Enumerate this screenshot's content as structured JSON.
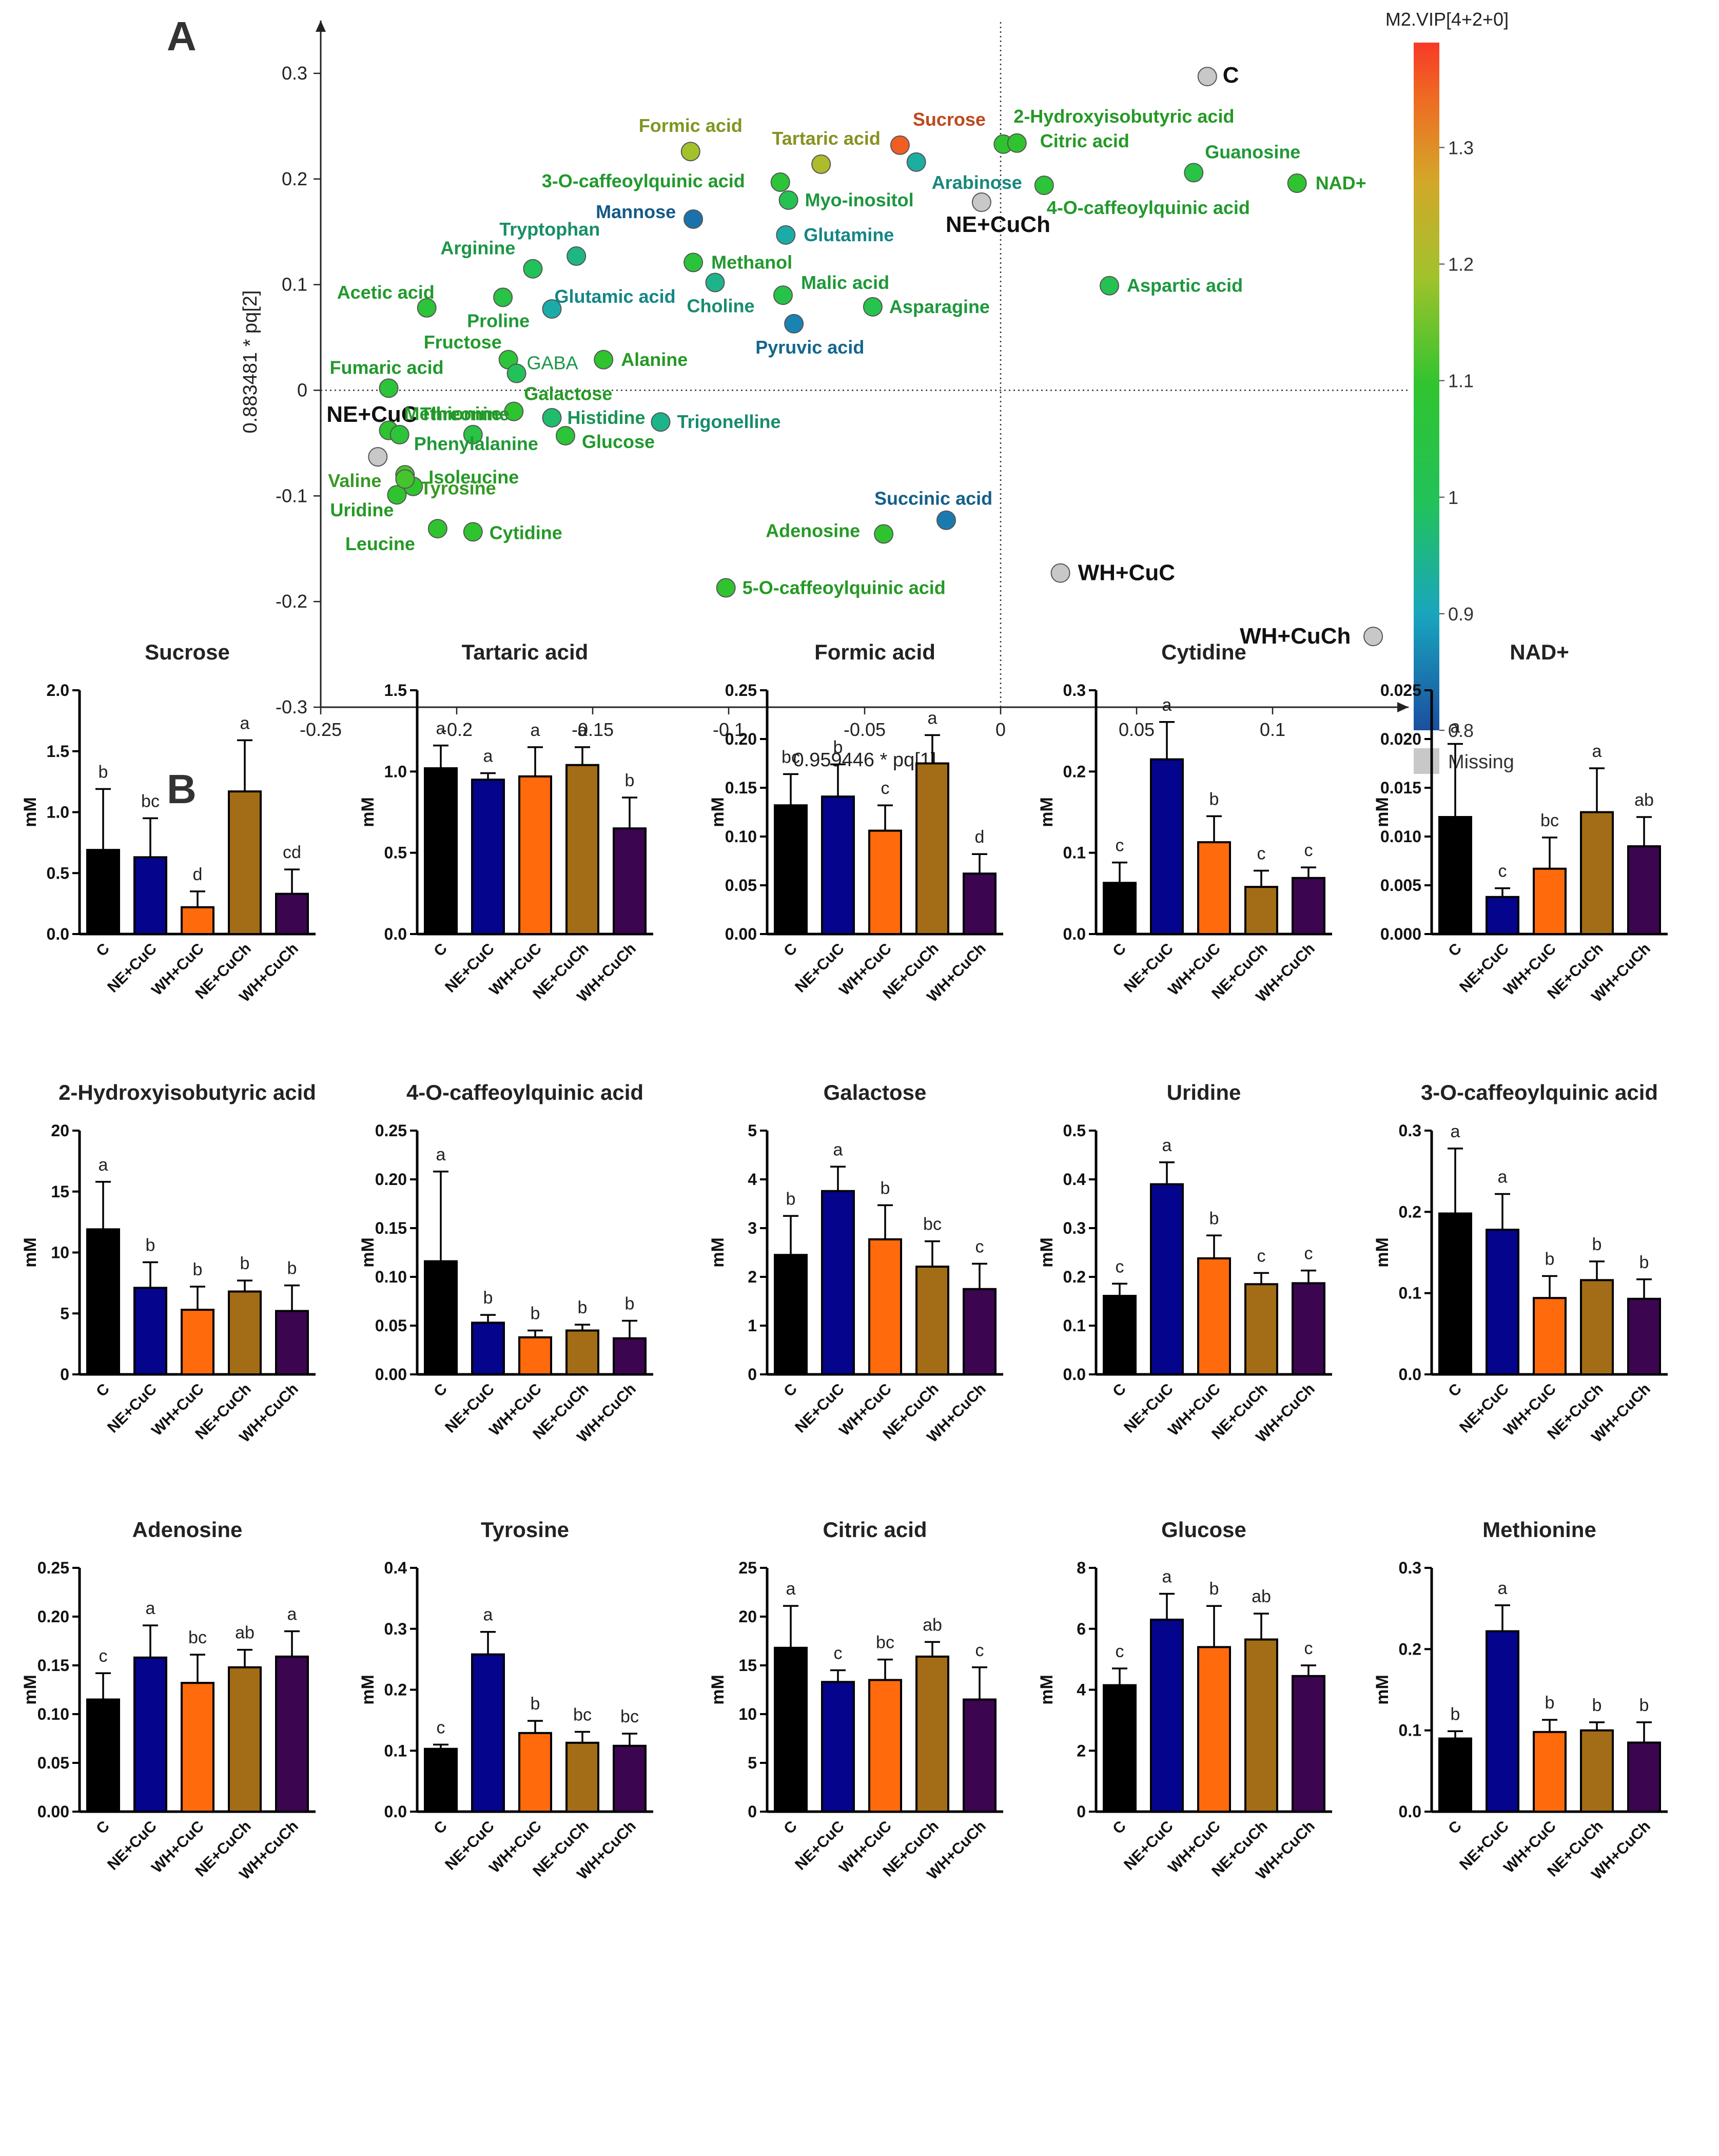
{
  "panel_labels": [
    "A",
    "B"
  ],
  "colorbar": {
    "title": "M2.VIP[4+2+0]",
    "ticks": [
      0.8,
      0.9,
      1,
      1.1,
      1.2,
      1.3
    ],
    "range": [
      0.8,
      1.39
    ],
    "missing_label": "Missing",
    "missing_color": "#c8c8c8",
    "scale_colors": [
      "#1a4fa0",
      "#19a6be",
      "#22c25a",
      "#2fc42f",
      "#a2c22b",
      "#d3a728",
      "#ef6a23",
      "#f73a27"
    ]
  },
  "chart_data": [
    {
      "type": "scatter",
      "title": "",
      "xlabel": "0.959446 * pq[1]",
      "ylabel": "0.883481 * pq[2]",
      "xlim": [
        -0.25,
        0.15
      ],
      "ylim": [
        -0.3,
        0.35
      ],
      "xticks": [
        -0.25,
        -0.2,
        -0.15,
        -0.1,
        -0.05,
        0,
        0.05,
        0.1
      ],
      "yticks": [
        -0.3,
        -0.2,
        -0.1,
        0,
        0.1,
        0.2,
        0.3
      ],
      "points": [
        {
          "label": "C",
          "x": 0.076,
          "y": 0.297,
          "vip": null,
          "group": true
        },
        {
          "label": "NE+CuCh",
          "x": -0.007,
          "y": 0.178,
          "vip": null,
          "group": true
        },
        {
          "label": "NE+CuC",
          "x": -0.229,
          "y": -0.063,
          "vip": null,
          "group": true
        },
        {
          "label": "WH+CuC",
          "x": 0.022,
          "y": -0.173,
          "vip": null,
          "group": true
        },
        {
          "label": "WH+CuCh",
          "x": 0.137,
          "y": -0.233,
          "vip": null,
          "group": true
        },
        {
          "label": "Formic acid",
          "x": -0.114,
          "y": 0.226,
          "vip": 1.2
        },
        {
          "label": "Tartaric acid",
          "x": -0.066,
          "y": 0.214,
          "vip": 1.22
        },
        {
          "label": "Sucrose",
          "x": -0.037,
          "y": 0.232,
          "vip": 1.36
        },
        {
          "label": "2-Hydroxyisobutyric acid",
          "x": 0.001,
          "y": 0.233,
          "vip": 1.1
        },
        {
          "label": "Citric acid",
          "x": 0.006,
          "y": 0.234,
          "vip": 1.1
        },
        {
          "label": "Guanosine",
          "x": 0.071,
          "y": 0.206,
          "vip": 1.05
        },
        {
          "label": "NAD+",
          "x": 0.109,
          "y": 0.196,
          "vip": 1.1
        },
        {
          "label": "4-O-caffeoylquinic acid",
          "x": 0.016,
          "y": 0.194,
          "vip": 1.08
        },
        {
          "label": "3-O-caffeoylquinic acid",
          "x": -0.081,
          "y": 0.197,
          "vip": 1.08
        },
        {
          "label": "Arabinose",
          "x": -0.031,
          "y": 0.216,
          "vip": 0.93
        },
        {
          "label": "Myo-inositol",
          "x": -0.078,
          "y": 0.18,
          "vip": 1.02
        },
        {
          "label": "Mannose",
          "x": -0.113,
          "y": 0.162,
          "vip": 0.84
        },
        {
          "label": "Glutamine",
          "x": -0.079,
          "y": 0.147,
          "vip": 0.92
        },
        {
          "label": "Tryptophan",
          "x": -0.156,
          "y": 0.127,
          "vip": 0.96
        },
        {
          "label": "Arginine",
          "x": -0.172,
          "y": 0.115,
          "vip": 1.0
        },
        {
          "label": "Methanol",
          "x": -0.113,
          "y": 0.121,
          "vip": 1.07
        },
        {
          "label": "Acetic acid",
          "x": -0.211,
          "y": 0.078,
          "vip": 1.08
        },
        {
          "label": "Glutamic acid",
          "x": -0.165,
          "y": 0.077,
          "vip": 0.92
        },
        {
          "label": "Proline",
          "x": -0.183,
          "y": 0.088,
          "vip": 1.05
        },
        {
          "label": "Choline",
          "x": -0.105,
          "y": 0.102,
          "vip": 0.95
        },
        {
          "label": "Malic acid",
          "x": -0.08,
          "y": 0.09,
          "vip": 1.04
        },
        {
          "label": "Pyruvic acid",
          "x": -0.076,
          "y": 0.063,
          "vip": 0.86
        },
        {
          "label": "Asparagine",
          "x": -0.047,
          "y": 0.079,
          "vip": 1.03
        },
        {
          "label": "Aspartic acid",
          "x": 0.04,
          "y": 0.099,
          "vip": 1.02
        },
        {
          "label": "Fructose",
          "x": -0.181,
          "y": 0.029,
          "vip": 1.08
        },
        {
          "label": "GABA",
          "x": -0.178,
          "y": 0.016,
          "vip": 1.0
        },
        {
          "label": "Alanine",
          "x": -0.146,
          "y": 0.029,
          "vip": 1.1
        },
        {
          "label": "Fumaric acid",
          "x": -0.225,
          "y": 0.002,
          "vip": 1.08
        },
        {
          "label": "Methionine",
          "x": -0.225,
          "y": -0.038,
          "vip": 1.1
        },
        {
          "label": "Galactose",
          "x": -0.179,
          "y": -0.02,
          "vip": 1.1
        },
        {
          "label": "Threonine",
          "x": -0.221,
          "y": -0.042,
          "vip": 1.08
        },
        {
          "label": "Histidine",
          "x": -0.165,
          "y": -0.026,
          "vip": 0.98
        },
        {
          "label": "Glucose",
          "x": -0.16,
          "y": -0.043,
          "vip": 1.08
        },
        {
          "label": "Trigonelline",
          "x": -0.125,
          "y": -0.03,
          "vip": 0.95
        },
        {
          "label": "Phenylalanine",
          "x": -0.194,
          "y": -0.042,
          "vip": 1.05
        },
        {
          "label": "Valine",
          "x": -0.219,
          "y": -0.08,
          "vip": 1.12
        },
        {
          "label": "Isoleucine",
          "x": -0.216,
          "y": -0.091,
          "vip": 1.1
        },
        {
          "label": "Uridine",
          "x": -0.222,
          "y": -0.099,
          "vip": 1.1
        },
        {
          "label": "Tyrosine",
          "x": -0.219,
          "y": -0.084,
          "vip": 1.12
        },
        {
          "label": "Leucine",
          "x": -0.207,
          "y": -0.131,
          "vip": 1.1
        },
        {
          "label": "Cytidine",
          "x": -0.194,
          "y": -0.134,
          "vip": 1.1
        },
        {
          "label": "Succinic acid",
          "x": -0.02,
          "y": -0.123,
          "vip": 0.85
        },
        {
          "label": "Adenosine",
          "x": -0.043,
          "y": -0.136,
          "vip": 1.1
        },
        {
          "label": "5-O-caffeoylquinic acid",
          "x": -0.101,
          "y": -0.187,
          "vip": 1.1
        }
      ]
    },
    {
      "type": "bar",
      "title": "Sucrose",
      "ylabel": "mM",
      "ylim": [
        0,
        2.0
      ],
      "yticks": [
        "0.0",
        "0.5",
        "1.0",
        "1.5",
        "2.0"
      ],
      "categories": [
        "C",
        "NE+CuC",
        "WH+CuC",
        "NE+CuCh",
        "WH+CuCh"
      ],
      "values": [
        0.69,
        0.63,
        0.22,
        1.17,
        0.33
      ],
      "errors": [
        0.5,
        0.32,
        0.13,
        0.42,
        0.2
      ],
      "letters": [
        "b",
        "bc",
        "d",
        "a",
        "cd"
      ]
    },
    {
      "type": "bar",
      "title": "Tartaric acid",
      "ylabel": "mM",
      "ylim": [
        0,
        1.5
      ],
      "yticks": [
        "0.0",
        "0.5",
        "1.0",
        "1.5"
      ],
      "categories": [
        "C",
        "NE+CuC",
        "WH+CuC",
        "NE+CuCh",
        "WH+CuCh"
      ],
      "values": [
        1.02,
        0.95,
        0.97,
        1.04,
        0.65
      ],
      "errors": [
        0.14,
        0.04,
        0.18,
        0.11,
        0.19
      ],
      "letters": [
        "a",
        "a",
        "a",
        "a",
        "b"
      ]
    },
    {
      "type": "bar",
      "title": "Formic acid",
      "ylabel": "mM",
      "ylim": [
        0,
        0.25
      ],
      "yticks": [
        "0.00",
        "0.05",
        "0.10",
        "0.15",
        "0.20",
        "0.25"
      ],
      "categories": [
        "C",
        "NE+CuC",
        "WH+CuC",
        "NE+CuCh",
        "WH+CuCh"
      ],
      "values": [
        0.132,
        0.141,
        0.106,
        0.175,
        0.062
      ],
      "errors": [
        0.032,
        0.033,
        0.026,
        0.029,
        0.02
      ],
      "letters": [
        "bc",
        "b",
        "c",
        "a",
        "d"
      ]
    },
    {
      "type": "bar",
      "title": "Cytidine",
      "ylabel": "mM",
      "ylim": [
        0,
        0.3
      ],
      "yticks": [
        "0.0",
        "0.1",
        "0.2",
        "0.3"
      ],
      "categories": [
        "C",
        "NE+CuC",
        "WH+CuC",
        "NE+CuCh",
        "WH+CuCh"
      ],
      "values": [
        0.063,
        0.215,
        0.113,
        0.058,
        0.069
      ],
      "errors": [
        0.025,
        0.046,
        0.032,
        0.02,
        0.013
      ],
      "letters": [
        "c",
        "a",
        "b",
        "c",
        "c"
      ]
    },
    {
      "type": "bar",
      "title": "NAD+",
      "ylabel": "mM",
      "ylim": [
        0,
        0.025
      ],
      "yticks": [
        "0.000",
        "0.005",
        "0.010",
        "0.015",
        "0.020",
        "0.025"
      ],
      "categories": [
        "C",
        "NE+CuC",
        "WH+CuC",
        "NE+CuCh",
        "WH+CuCh"
      ],
      "values": [
        0.012,
        0.0038,
        0.0067,
        0.0125,
        0.009
      ],
      "errors": [
        0.0075,
        0.0009,
        0.0032,
        0.0045,
        0.003
      ],
      "letters": [
        "a",
        "c",
        "bc",
        "a",
        "ab"
      ]
    },
    {
      "type": "bar",
      "title": "2-Hydroxyisobutyric acid",
      "ylabel": "mM",
      "ylim": [
        0,
        20
      ],
      "yticks": [
        "0",
        "5",
        "10",
        "15",
        "20"
      ],
      "categories": [
        "C",
        "NE+CuC",
        "WH+CuC",
        "NE+CuCh",
        "WH+CuCh"
      ],
      "values": [
        11.9,
        7.1,
        5.3,
        6.8,
        5.2
      ],
      "errors": [
        3.9,
        2.1,
        1.9,
        0.9,
        2.1
      ],
      "letters": [
        "a",
        "b",
        "b",
        "b",
        "b"
      ]
    },
    {
      "type": "bar",
      "title": "4-O-caffeoylquinic acid",
      "ylabel": "mM",
      "ylim": [
        0,
        0.25
      ],
      "yticks": [
        "0.00",
        "0.05",
        "0.10",
        "0.15",
        "0.20",
        "0.25"
      ],
      "categories": [
        "C",
        "NE+CuC",
        "WH+CuC",
        "NE+CuCh",
        "WH+CuCh"
      ],
      "values": [
        0.116,
        0.053,
        0.038,
        0.045,
        0.037
      ],
      "errors": [
        0.092,
        0.008,
        0.007,
        0.006,
        0.018
      ],
      "letters": [
        "a",
        "b",
        "b",
        "b",
        "b"
      ]
    },
    {
      "type": "bar",
      "title": "Galactose",
      "ylabel": "mM",
      "ylim": [
        0,
        5
      ],
      "yticks": [
        "0",
        "1",
        "2",
        "3",
        "4",
        "5"
      ],
      "categories": [
        "C",
        "NE+CuC",
        "WH+CuC",
        "NE+CuCh",
        "WH+CuCh"
      ],
      "values": [
        2.45,
        3.76,
        2.77,
        2.21,
        1.75
      ],
      "errors": [
        0.8,
        0.5,
        0.7,
        0.52,
        0.52
      ],
      "letters": [
        "b",
        "a",
        "b",
        "bc",
        "c"
      ]
    },
    {
      "type": "bar",
      "title": "Uridine",
      "ylabel": "mM",
      "ylim": [
        0,
        0.5
      ],
      "yticks": [
        "0.0",
        "0.1",
        "0.2",
        "0.3",
        "0.4",
        "0.5"
      ],
      "categories": [
        "C",
        "NE+CuC",
        "WH+CuC",
        "NE+CuCh",
        "WH+CuCh"
      ],
      "values": [
        0.161,
        0.39,
        0.238,
        0.185,
        0.187
      ],
      "errors": [
        0.025,
        0.045,
        0.047,
        0.023,
        0.026
      ],
      "letters": [
        "c",
        "a",
        "b",
        "c",
        "c"
      ]
    },
    {
      "type": "bar",
      "title": "3-O-caffeoylquinic acid",
      "ylabel": "mM",
      "ylim": [
        0,
        0.3
      ],
      "yticks": [
        "0.0",
        "0.1",
        "0.2",
        "0.3"
      ],
      "categories": [
        "C",
        "NE+CuC",
        "WH+CuC",
        "NE+CuCh",
        "WH+CuCh"
      ],
      "values": [
        0.198,
        0.178,
        0.094,
        0.116,
        0.093
      ],
      "errors": [
        0.08,
        0.044,
        0.027,
        0.023,
        0.024
      ],
      "letters": [
        "a",
        "a",
        "b",
        "b",
        "b"
      ]
    },
    {
      "type": "bar",
      "title": "Adenosine",
      "ylabel": "mM",
      "ylim": [
        0,
        0.25
      ],
      "yticks": [
        "0.00",
        "0.05",
        "0.10",
        "0.15",
        "0.20",
        "0.25"
      ],
      "categories": [
        "C",
        "NE+CuC",
        "WH+CuC",
        "NE+CuCh",
        "WH+CuCh"
      ],
      "values": [
        0.115,
        0.158,
        0.132,
        0.148,
        0.159
      ],
      "errors": [
        0.027,
        0.033,
        0.029,
        0.018,
        0.026
      ],
      "letters": [
        "c",
        "a",
        "bc",
        "ab",
        "a"
      ]
    },
    {
      "type": "bar",
      "title": "Tyrosine",
      "ylabel": "mM",
      "ylim": [
        0,
        0.4
      ],
      "yticks": [
        "0.0",
        "0.1",
        "0.2",
        "0.3",
        "0.4"
      ],
      "categories": [
        "C",
        "NE+CuC",
        "WH+CuC",
        "NE+CuCh",
        "WH+CuCh"
      ],
      "values": [
        0.103,
        0.258,
        0.129,
        0.113,
        0.108
      ],
      "errors": [
        0.007,
        0.037,
        0.02,
        0.018,
        0.02
      ],
      "letters": [
        "c",
        "a",
        "b",
        "bc",
        "bc"
      ]
    },
    {
      "type": "bar",
      "title": "Citric acid",
      "ylabel": "mM",
      "ylim": [
        0,
        25
      ],
      "yticks": [
        "0",
        "5",
        "10",
        "15",
        "20",
        "25"
      ],
      "categories": [
        "C",
        "NE+CuC",
        "WH+CuC",
        "NE+CuCh",
        "WH+CuCh"
      ],
      "values": [
        16.8,
        13.3,
        13.5,
        15.9,
        11.5
      ],
      "errors": [
        4.3,
        1.2,
        2.1,
        1.5,
        3.3
      ],
      "letters": [
        "a",
        "c",
        "bc",
        "ab",
        "c"
      ]
    },
    {
      "type": "bar",
      "title": "Glucose",
      "ylabel": "mM",
      "ylim": [
        0,
        8
      ],
      "yticks": [
        "0",
        "2",
        "4",
        "6",
        "8"
      ],
      "categories": [
        "C",
        "NE+CuC",
        "WH+CuC",
        "NE+CuCh",
        "WH+CuCh"
      ],
      "values": [
        4.15,
        6.3,
        5.4,
        5.65,
        4.45
      ],
      "errors": [
        0.55,
        0.85,
        1.35,
        0.85,
        0.35
      ],
      "letters": [
        "c",
        "a",
        "b",
        "ab",
        "c"
      ]
    },
    {
      "type": "bar",
      "title": "Methionine",
      "ylabel": "mM",
      "ylim": [
        0,
        0.3
      ],
      "yticks": [
        "0.0",
        "0.1",
        "0.2",
        "0.3"
      ],
      "categories": [
        "C",
        "NE+CuC",
        "WH+CuC",
        "NE+CuCh",
        "WH+CuCh"
      ],
      "values": [
        0.09,
        0.222,
        0.098,
        0.1,
        0.085
      ],
      "errors": [
        0.009,
        0.032,
        0.015,
        0.01,
        0.025
      ],
      "letters": [
        "b",
        "a",
        "b",
        "b",
        "b"
      ]
    }
  ],
  "bar_colors": [
    "#000000",
    "#04048c",
    "#ff6a0c",
    "#a36c16",
    "#3b0550"
  ]
}
